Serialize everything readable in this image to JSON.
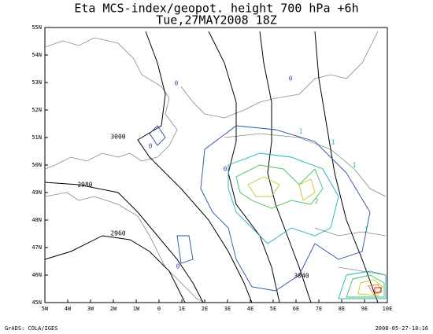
{
  "header": {
    "title": "Eta MCS-index/geopot. height 700 hPa +6h",
    "subtitle": "Tue,27MAY2008 18Z"
  },
  "map": {
    "lat_labels": [
      "55N",
      "54N",
      "53N",
      "52N",
      "51N",
      "50N",
      "49N",
      "48N",
      "47N",
      "46N",
      "45N"
    ],
    "lon_labels": [
      "5W",
      "4W",
      "3W",
      "2W",
      "1W",
      "0",
      "1E",
      "2E",
      "3E",
      "4E",
      "5E",
      "6E",
      "7E",
      "8E",
      "9E",
      "10E"
    ],
    "height_labels": [
      "3000",
      "2980",
      "2960",
      "3040"
    ],
    "index_labels": [
      "0",
      "0",
      "0",
      "1",
      "1",
      "0",
      "1",
      "2",
      "0",
      "1"
    ]
  },
  "footer": {
    "left": "GrADS: COLA/IGES",
    "right": "2008-05-27-18:16"
  }
}
